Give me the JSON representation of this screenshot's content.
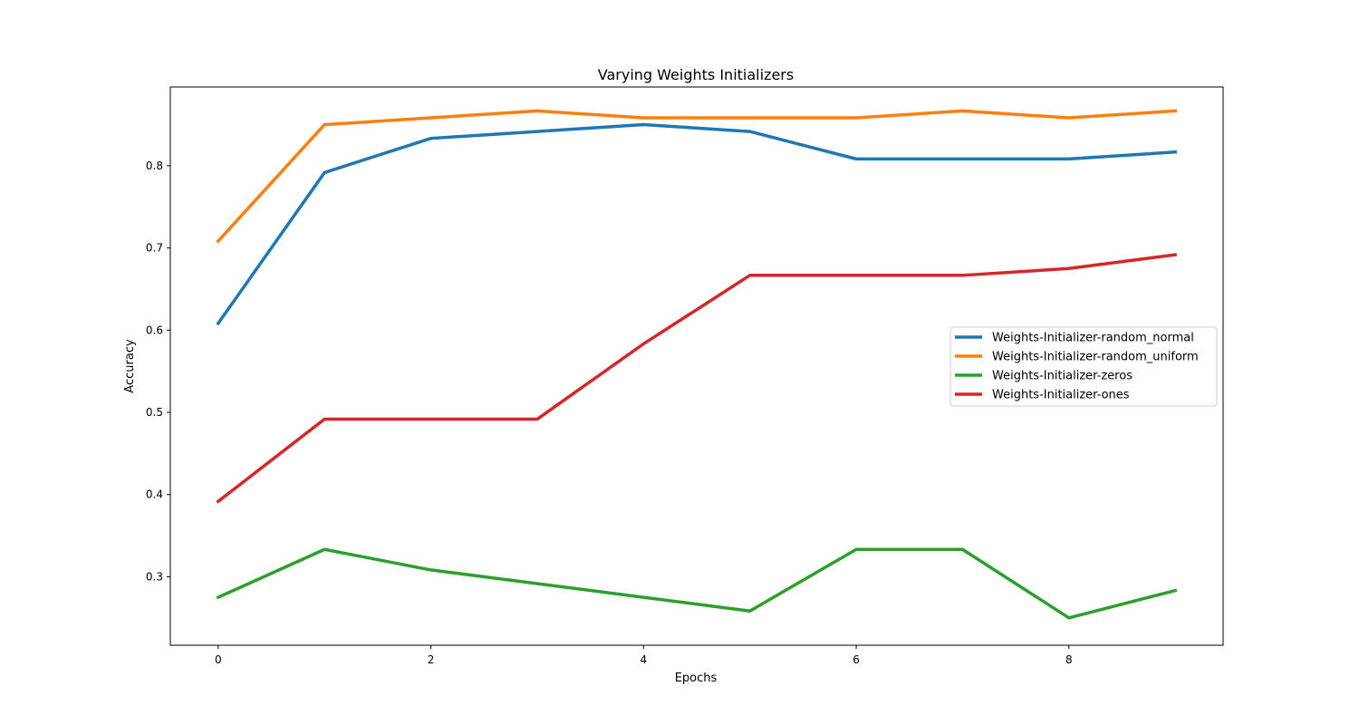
{
  "chart_data": {
    "type": "line",
    "title": "Varying Weights Initializers",
    "xlabel": "Epochs",
    "ylabel": "Accuracy",
    "x": [
      0,
      1,
      2,
      3,
      4,
      5,
      6,
      7,
      8,
      9
    ],
    "xlim": [
      -0.45,
      9.45
    ],
    "ylim": [
      0.2167,
      0.8958
    ],
    "xticks": [
      0,
      2,
      4,
      6,
      8
    ],
    "xtick_labels": [
      "0",
      "2",
      "4",
      "6",
      "8"
    ],
    "yticks": [
      0.3,
      0.4,
      0.5,
      0.6,
      0.7,
      0.8
    ],
    "ytick_labels": [
      "0.3",
      "0.4",
      "0.5",
      "0.6",
      "0.7",
      "0.8"
    ],
    "grid": false,
    "legend_position": "center-right",
    "series": [
      {
        "name": "Weights-Initializer-random_normal",
        "color": "#1f77b4",
        "values": [
          0.6083,
          0.7917,
          0.8333,
          0.8417,
          0.85,
          0.8417,
          0.8083,
          0.8083,
          0.8083,
          0.8167
        ]
      },
      {
        "name": "Weights-Initializer-random_uniform",
        "color": "#ff7f0e",
        "values": [
          0.7083,
          0.85,
          0.8583,
          0.8667,
          0.8583,
          0.8583,
          0.8583,
          0.8667,
          0.8583,
          0.8667
        ]
      },
      {
        "name": "Weights-Initializer-zeros",
        "color": "#2ca02c",
        "values": [
          0.275,
          0.3333,
          0.3083,
          0.2917,
          0.275,
          0.2583,
          0.3333,
          0.3333,
          0.25,
          0.2833
        ]
      },
      {
        "name": "Weights-Initializer-ones",
        "color": "#d62728",
        "values": [
          0.3917,
          0.4917,
          0.4917,
          0.4917,
          0.5833,
          0.6667,
          0.6667,
          0.6667,
          0.675,
          0.6917
        ]
      }
    ]
  }
}
